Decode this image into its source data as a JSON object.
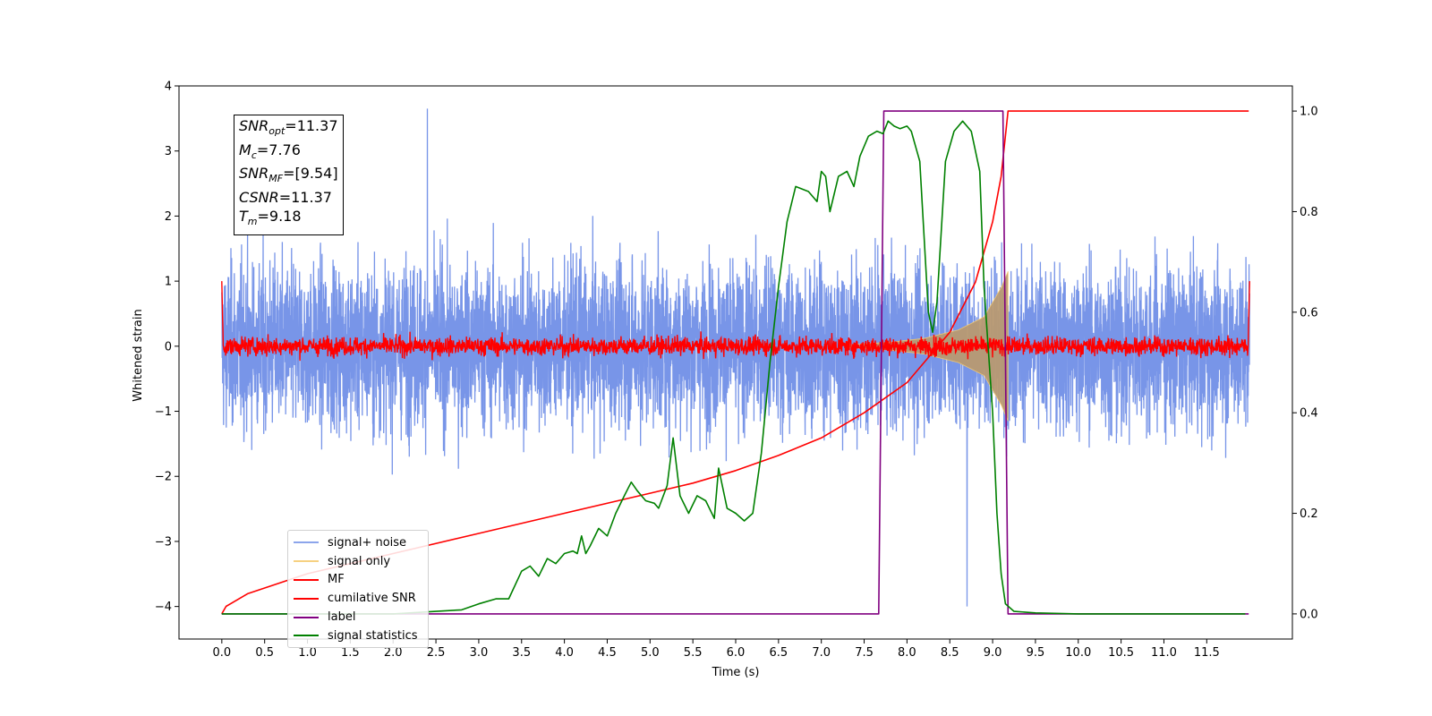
{
  "chart_data": {
    "type": "line",
    "xlabel": "Time (s)",
    "ylabel": "Whitened strain",
    "xlim": [
      -0.5,
      12.5
    ],
    "ylim": [
      -4.5,
      4.0
    ],
    "y2lim": [
      -0.05,
      1.05
    ],
    "x_ticks": [
      0.0,
      0.5,
      1.0,
      1.5,
      2.0,
      2.5,
      3.0,
      3.5,
      4.0,
      4.5,
      5.0,
      5.5,
      6.0,
      6.5,
      7.0,
      7.5,
      8.0,
      8.5,
      9.0,
      9.5,
      10.0,
      10.5,
      11.0,
      11.5
    ],
    "x_tick_labels": [
      "0.0",
      "0.5",
      "1.0",
      "1.5",
      "2.0",
      "2.5",
      "3.0",
      "3.5",
      "4.0",
      "4.5",
      "5.0",
      "5.5",
      "6.0",
      "6.5",
      "7.0",
      "7.5",
      "8.0",
      "8.5",
      "9.0",
      "9.5",
      "10.0",
      "10.5",
      "11.0",
      "11.5"
    ],
    "y_ticks": [
      4,
      3,
      2,
      1,
      0,
      -1,
      -2,
      -3,
      -4
    ],
    "y_tick_labels": [
      "4",
      "3",
      "2",
      "1",
      "0",
      "−1",
      "−2",
      "−3",
      "−4"
    ],
    "y2_ticks": [
      1.0,
      0.8,
      0.6,
      0.4,
      0.2,
      0.0
    ],
    "y2_tick_labels": [
      "1.0",
      "0.8",
      "0.6",
      "0.4",
      "0.2",
      "0.0"
    ],
    "legend_position": "lower-left",
    "grid": false,
    "series": [
      {
        "name": "signal+ noise",
        "axis": "left",
        "color": "#7895e8",
        "kind": "noise",
        "x_range": [
          0,
          12
        ],
        "typical_amplitude": 1.6,
        "max_value": 3.65,
        "min_value": -4.0
      },
      {
        "name": "signal only",
        "axis": "left",
        "color": "#f5c96b",
        "fill_color": "#b99a72",
        "kind": "chirp",
        "x_range": [
          7.3,
          9.18
        ],
        "envelope_points": [
          [
            7.3,
            0.02
          ],
          [
            7.8,
            0.06
          ],
          [
            8.2,
            0.12
          ],
          [
            8.6,
            0.25
          ],
          [
            8.9,
            0.45
          ],
          [
            9.1,
            0.9
          ],
          [
            9.18,
            1.15
          ]
        ]
      },
      {
        "name": "MF",
        "axis": "left",
        "color": "#ff0000",
        "kind": "noise",
        "x_range": [
          0,
          12
        ],
        "typical_amplitude": 0.2,
        "edge_values": [
          1.0,
          1.0
        ]
      },
      {
        "name": "cumilative SNR",
        "axis": "right",
        "color": "#ff0000",
        "kind": "line",
        "points": [
          [
            0.0,
            0.0
          ],
          [
            0.05,
            0.015
          ],
          [
            0.3,
            0.04
          ],
          [
            1.0,
            0.08
          ],
          [
            2.0,
            0.12
          ],
          [
            3.0,
            0.16
          ],
          [
            4.0,
            0.2
          ],
          [
            5.0,
            0.24
          ],
          [
            5.5,
            0.26
          ],
          [
            6.0,
            0.285
          ],
          [
            6.5,
            0.315
          ],
          [
            7.0,
            0.35
          ],
          [
            7.5,
            0.4
          ],
          [
            8.0,
            0.46
          ],
          [
            8.5,
            0.56
          ],
          [
            8.8,
            0.66
          ],
          [
            9.0,
            0.78
          ],
          [
            9.1,
            0.87
          ],
          [
            9.18,
            1.0
          ],
          [
            11.99,
            1.0
          ]
        ]
      },
      {
        "name": "label",
        "axis": "right",
        "color": "#800080",
        "kind": "line",
        "points": [
          [
            0.0,
            0.0
          ],
          [
            7.67,
            0.0
          ],
          [
            7.73,
            1.0
          ],
          [
            9.12,
            1.0
          ],
          [
            9.18,
            0.0
          ],
          [
            11.99,
            0.0
          ]
        ]
      },
      {
        "name": "signal statistics",
        "axis": "right",
        "color": "#008000",
        "kind": "line",
        "points": [
          [
            0.0,
            0.0
          ],
          [
            1.0,
            0.0
          ],
          [
            2.0,
            0.0
          ],
          [
            2.5,
            0.005
          ],
          [
            2.8,
            0.008
          ],
          [
            3.0,
            0.02
          ],
          [
            3.2,
            0.03
          ],
          [
            3.35,
            0.03
          ],
          [
            3.5,
            0.085
          ],
          [
            3.6,
            0.095
          ],
          [
            3.7,
            0.075
          ],
          [
            3.8,
            0.11
          ],
          [
            3.9,
            0.1
          ],
          [
            4.0,
            0.12
          ],
          [
            4.1,
            0.125
          ],
          [
            4.15,
            0.12
          ],
          [
            4.2,
            0.155
          ],
          [
            4.25,
            0.12
          ],
          [
            4.3,
            0.135
          ],
          [
            4.4,
            0.17
          ],
          [
            4.5,
            0.155
          ],
          [
            4.6,
            0.2
          ],
          [
            4.7,
            0.235
          ],
          [
            4.78,
            0.262
          ],
          [
            4.85,
            0.245
          ],
          [
            4.95,
            0.225
          ],
          [
            5.05,
            0.22
          ],
          [
            5.1,
            0.21
          ],
          [
            5.2,
            0.255
          ],
          [
            5.27,
            0.35
          ],
          [
            5.35,
            0.235
          ],
          [
            5.45,
            0.2
          ],
          [
            5.55,
            0.235
          ],
          [
            5.65,
            0.225
          ],
          [
            5.75,
            0.19
          ],
          [
            5.8,
            0.29
          ],
          [
            5.9,
            0.21
          ],
          [
            6.0,
            0.2
          ],
          [
            6.1,
            0.185
          ],
          [
            6.2,
            0.2
          ],
          [
            6.3,
            0.32
          ],
          [
            6.4,
            0.5
          ],
          [
            6.5,
            0.65
          ],
          [
            6.6,
            0.78
          ],
          [
            6.7,
            0.85
          ],
          [
            6.85,
            0.84
          ],
          [
            6.95,
            0.82
          ],
          [
            7.0,
            0.88
          ],
          [
            7.05,
            0.87
          ],
          [
            7.1,
            0.8
          ],
          [
            7.2,
            0.87
          ],
          [
            7.3,
            0.88
          ],
          [
            7.38,
            0.85
          ],
          [
            7.45,
            0.91
          ],
          [
            7.55,
            0.95
          ],
          [
            7.65,
            0.96
          ],
          [
            7.72,
            0.955
          ],
          [
            7.78,
            0.98
          ],
          [
            7.85,
            0.97
          ],
          [
            7.92,
            0.965
          ],
          [
            8.0,
            0.97
          ],
          [
            8.05,
            0.96
          ],
          [
            8.15,
            0.9
          ],
          [
            8.25,
            0.6
          ],
          [
            8.3,
            0.56
          ],
          [
            8.35,
            0.62
          ],
          [
            8.45,
            0.9
          ],
          [
            8.55,
            0.96
          ],
          [
            8.65,
            0.98
          ],
          [
            8.75,
            0.96
          ],
          [
            8.85,
            0.88
          ],
          [
            8.9,
            0.65
          ],
          [
            9.0,
            0.4
          ],
          [
            9.05,
            0.2
          ],
          [
            9.1,
            0.08
          ],
          [
            9.15,
            0.02
          ],
          [
            9.25,
            0.005
          ],
          [
            9.5,
            0.002
          ],
          [
            10.0,
            0.0
          ],
          [
            11.0,
            0.0
          ],
          [
            11.95,
            0.0
          ]
        ]
      }
    ]
  },
  "info_box": {
    "lines": [
      {
        "symbol": "SNR",
        "subscript": "opt",
        "text": "=11.37"
      },
      {
        "symbol": "M",
        "subscript": "c",
        "text": "=7.76"
      },
      {
        "symbol": "SNR",
        "subscript": "MF",
        "text": "=[9.54]"
      },
      {
        "symbol": "CSNR",
        "subscript": "",
        "text": "=11.37"
      },
      {
        "symbol": "T",
        "subscript": "m",
        "text": "=9.18"
      }
    ]
  }
}
